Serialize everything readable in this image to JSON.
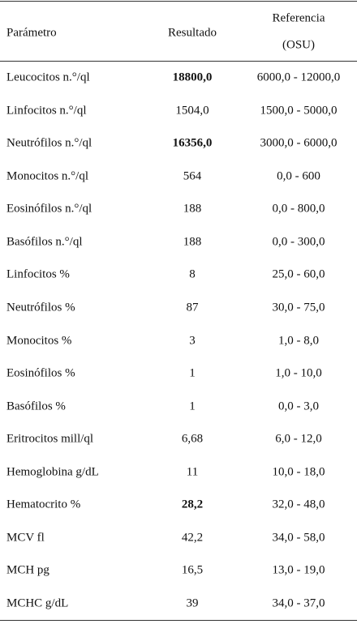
{
  "table": {
    "header": {
      "parameter": "Parámetro",
      "result": "Resultado",
      "reference": [
        "Referencia",
        "(OSU)"
      ]
    },
    "rows": [
      {
        "parameter": "Leucocitos n.°/ql",
        "result": "18800,0",
        "reference": "6000,0 - 12000,0",
        "bold": true
      },
      {
        "parameter": "Linfocitos n.°/ql",
        "result": "1504,0",
        "reference": "1500,0 - 5000,0",
        "bold": false
      },
      {
        "parameter": "Neutrófilos n.°/ql",
        "result": "16356,0",
        "reference": "3000,0 - 6000,0",
        "bold": true
      },
      {
        "parameter": "Monocitos n.°/ql",
        "result": "564",
        "reference": "0,0 - 600",
        "bold": false
      },
      {
        "parameter": "Eosinófilos n.°/ql",
        "result": "188",
        "reference": "0,0 - 800,0",
        "bold": false
      },
      {
        "parameter": "Basófilos n.°/ql",
        "result": "188",
        "reference": "0,0 - 300,0",
        "bold": false
      },
      {
        "parameter": "Linfocitos %",
        "result": "8",
        "reference": "25,0 - 60,0",
        "bold": false
      },
      {
        "parameter": "Neutrófilos %",
        "result": "87",
        "reference": "30,0 - 75,0",
        "bold": false
      },
      {
        "parameter": "Monocitos %",
        "result": "3",
        "reference": "1,0 - 8,0",
        "bold": false
      },
      {
        "parameter": "Eosinófilos %",
        "result": "1",
        "reference": "1,0 - 10,0",
        "bold": false
      },
      {
        "parameter": "Basófilos %",
        "result": "1",
        "reference": "0,0 - 3,0",
        "bold": false
      },
      {
        "parameter": "Eritrocitos mill/ql",
        "result": "6,68",
        "reference": "6,0 - 12,0",
        "bold": false
      },
      {
        "parameter": "Hemoglobina g/dL",
        "result": "11",
        "reference": "10,0 - 18,0",
        "bold": false
      },
      {
        "parameter": "Hematocrito %",
        "result": "28,2",
        "reference": "32,0 - 48,0",
        "bold": true
      },
      {
        "parameter": "MCV fl",
        "result": "42,2",
        "reference": "34,0 - 58,0",
        "bold": false
      },
      {
        "parameter": "MCH pg",
        "result": "16,5",
        "reference": "13,0 - 19,0",
        "bold": false
      },
      {
        "parameter": "MCHC g/dL",
        "result": "39",
        "reference": "34,0 - 37,0",
        "bold": false
      }
    ]
  }
}
